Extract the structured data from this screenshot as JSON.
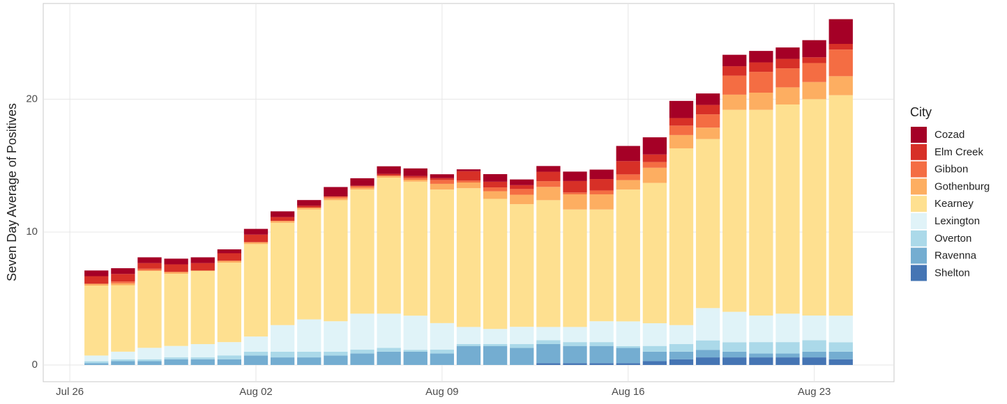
{
  "chart_data": {
    "type": "stacked-bar",
    "y_label": "Seven Day Average of Positives",
    "legend_title": "City",
    "x": [
      "Jul 27",
      "Jul 28",
      "Jul 29",
      "Jul 30",
      "Jul 31",
      "Aug 01",
      "Aug 02",
      "Aug 03",
      "Aug 04",
      "Aug 05",
      "Aug 06",
      "Aug 07",
      "Aug 08",
      "Aug 09",
      "Aug 10",
      "Aug 11",
      "Aug 12",
      "Aug 13",
      "Aug 14",
      "Aug 15",
      "Aug 16",
      "Aug 17",
      "Aug 18",
      "Aug 19",
      "Aug 20",
      "Aug 21",
      "Aug 22",
      "Aug 23",
      "Aug 24"
    ],
    "xlim": [
      "Jul 25",
      "Aug 26"
    ],
    "xticks": [
      "Jul 26",
      "Aug 02",
      "Aug 09",
      "Aug 16",
      "Aug 23"
    ],
    "ylim": [
      -1.26,
      27.2
    ],
    "yticks": [
      0,
      10,
      20
    ],
    "grid": true,
    "legend": "right",
    "series": [
      {
        "name": "Cozad",
        "color": "#a50026",
        "values": [
          0.43,
          0.43,
          0.43,
          0.43,
          0.43,
          0.29,
          0.43,
          0.43,
          0.43,
          0.71,
          0.57,
          0.57,
          0.57,
          0.29,
          0.14,
          0.57,
          0.43,
          0.43,
          0.71,
          0.71,
          1.14,
          1.29,
          1.29,
          0.86,
          0.86,
          0.86,
          0.86,
          1.29,
          1.86
        ]
      },
      {
        "name": "Elm Creek",
        "color": "#d73027",
        "values": [
          0.57,
          0.57,
          0.43,
          0.57,
          0.57,
          0.57,
          0.57,
          0.29,
          0.14,
          0,
          0,
          0.14,
          0.14,
          0.14,
          0.71,
          0.43,
          0.29,
          0.71,
          0.86,
          0.86,
          1.0,
          0.57,
          0.57,
          0.71,
          0.71,
          0.71,
          0.71,
          0.43,
          0.43
        ]
      },
      {
        "name": "Gibbon",
        "color": "#f46d43",
        "values": [
          0,
          0.14,
          0.14,
          0,
          0,
          0,
          0,
          0,
          0,
          0.14,
          0.14,
          0,
          0.14,
          0.29,
          0.14,
          0.29,
          0.43,
          0.43,
          0.14,
          0.29,
          0.43,
          0.43,
          0.71,
          1.0,
          1.43,
          1.57,
          1.43,
          1.43,
          2.0
        ]
      },
      {
        "name": "Gothenburg",
        "color": "#fdae61",
        "values": [
          0.14,
          0.14,
          0,
          0.14,
          0,
          0.14,
          0.14,
          0.14,
          0.14,
          0.14,
          0.14,
          0.14,
          0.14,
          0.43,
          0.43,
          0.57,
          0.71,
          1.0,
          1.14,
          1.14,
          0.71,
          1.14,
          1.0,
          0.86,
          1.14,
          1.29,
          1.29,
          1.29,
          1.43
        ]
      },
      {
        "name": "Kearney",
        "color": "#fee090",
        "values": [
          5.26,
          5.0,
          5.81,
          5.43,
          5.53,
          5.98,
          6.96,
          7.7,
          8.27,
          9.11,
          9.34,
          10.24,
          10.09,
          10.05,
          10.44,
          9.79,
          9.23,
          9.54,
          8.84,
          8.41,
          9.92,
          10.56,
          13.3,
          12.72,
          15.2,
          15.48,
          15.74,
          16.28,
          16.59
        ]
      },
      {
        "name": "Lexington",
        "color": "#e0f3f8",
        "values": [
          0.43,
          0.57,
          0.86,
          0.86,
          1.0,
          1.0,
          1.14,
          2.0,
          2.43,
          2.29,
          2.71,
          2.57,
          2.57,
          2.0,
          1.29,
          1.14,
          1.29,
          1.0,
          1.14,
          1.57,
          1.86,
          1.71,
          1.43,
          2.43,
          2.29,
          2.0,
          2.14,
          1.86,
          2.0
        ]
      },
      {
        "name": "Overton",
        "color": "#abd9e9",
        "values": [
          0.14,
          0.14,
          0.14,
          0.14,
          0.14,
          0.29,
          0.29,
          0.43,
          0.43,
          0.29,
          0.29,
          0.29,
          0.14,
          0.29,
          0.14,
          0.14,
          0.29,
          0.29,
          0.29,
          0.29,
          0.14,
          0.43,
          0.57,
          0.71,
          0.71,
          0.86,
          0.86,
          0.86,
          0.71
        ]
      },
      {
        "name": "Ravenna",
        "color": "#74add1",
        "values": [
          0.14,
          0.29,
          0.29,
          0.43,
          0.43,
          0.43,
          0.71,
          0.57,
          0.57,
          0.71,
          0.86,
          1.0,
          1.0,
          0.86,
          1.43,
          1.43,
          1.29,
          1.43,
          1.29,
          1.29,
          1.14,
          0.71,
          0.57,
          0.57,
          0.43,
          0.29,
          0.29,
          0.43,
          0.57
        ]
      },
      {
        "name": "Shelton",
        "color": "#4575b4",
        "values": [
          0,
          0,
          0,
          0,
          0,
          0,
          0,
          0,
          0,
          0,
          0,
          0,
          0,
          0,
          0,
          0,
          0,
          0.14,
          0.14,
          0.14,
          0.14,
          0.29,
          0.43,
          0.57,
          0.57,
          0.57,
          0.57,
          0.57,
          0.43
        ]
      }
    ]
  }
}
